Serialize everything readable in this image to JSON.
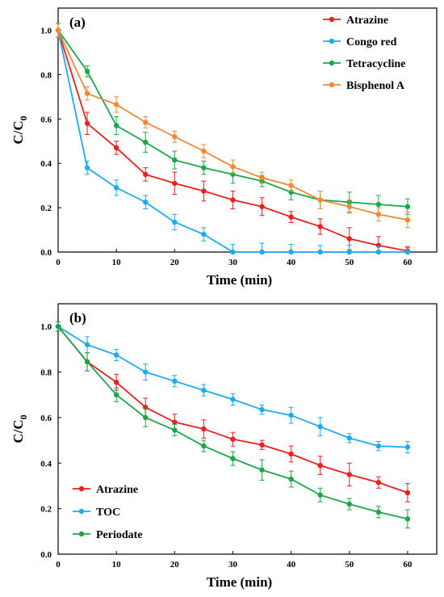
{
  "chart_data": [
    {
      "type": "line",
      "panel_label": "(a)",
      "xlabel": "Time (min)",
      "ylabel": "C/C",
      "ylabel_sub": "0",
      "xlim": [
        0,
        65
      ],
      "ylim": [
        0,
        1.1
      ],
      "xticks": [
        "0",
        "10",
        "20",
        "30",
        "40",
        "50",
        "60"
      ],
      "yticks": [
        "0.0",
        "0.2",
        "0.4",
        "0.6",
        "0.8",
        "1.0"
      ],
      "legend_position": "top-right",
      "grid": false,
      "series": [
        {
          "name": "Atrazine",
          "color": "#e8211e",
          "x": [
            0,
            5,
            10,
            15,
            20,
            25,
            30,
            35,
            40,
            45,
            50,
            55,
            60
          ],
          "y": [
            1.0,
            0.58,
            0.47,
            0.35,
            0.31,
            0.275,
            0.235,
            0.205,
            0.158,
            0.115,
            0.06,
            0.03,
            0.005
          ],
          "err": [
            0.03,
            0.05,
            0.03,
            0.03,
            0.05,
            0.045,
            0.04,
            0.04,
            0.025,
            0.035,
            0.05,
            0.04,
            0.02
          ]
        },
        {
          "name": "Congo red",
          "color": "#1eaaf0",
          "x": [
            0,
            5,
            10,
            15,
            20,
            25,
            30,
            35,
            40,
            45,
            50,
            55,
            60
          ],
          "y": [
            1.0,
            0.38,
            0.29,
            0.225,
            0.135,
            0.08,
            0.0,
            0.0,
            0.0,
            0.0,
            0.0,
            0.0,
            0.0
          ],
          "err": [
            0.03,
            0.03,
            0.035,
            0.03,
            0.035,
            0.03,
            0.035,
            0.04,
            0.035,
            0.03,
            0.03,
            0.025,
            0.02
          ]
        },
        {
          "name": "Tetracycline",
          "color": "#1ba64a",
          "x": [
            0,
            5,
            10,
            15,
            20,
            25,
            30,
            35,
            40,
            45,
            50,
            55,
            60
          ],
          "y": [
            1.0,
            0.815,
            0.57,
            0.495,
            0.415,
            0.38,
            0.35,
            0.32,
            0.27,
            0.235,
            0.225,
            0.215,
            0.205
          ],
          "err": [
            0.03,
            0.025,
            0.04,
            0.045,
            0.04,
            0.03,
            0.04,
            0.025,
            0.035,
            0.04,
            0.045,
            0.04,
            0.035
          ]
        },
        {
          "name": "Bisphenol A",
          "color": "#ef8a36",
          "x": [
            0,
            5,
            10,
            15,
            20,
            25,
            30,
            35,
            40,
            45,
            50,
            55,
            60
          ],
          "y": [
            1.0,
            0.715,
            0.665,
            0.585,
            0.52,
            0.455,
            0.385,
            0.335,
            0.3,
            0.235,
            0.205,
            0.17,
            0.145
          ],
          "err": [
            0.03,
            0.03,
            0.035,
            0.025,
            0.025,
            0.03,
            0.03,
            0.025,
            0.025,
            0.04,
            0.03,
            0.03,
            0.035
          ]
        }
      ]
    },
    {
      "type": "line",
      "panel_label": "(b)",
      "xlabel": "Time (min)",
      "ylabel": "C/C",
      "ylabel_sub": "0",
      "xlim": [
        0,
        65
      ],
      "ylim": [
        0,
        1.1
      ],
      "xticks": [
        "0",
        "10",
        "20",
        "30",
        "40",
        "50",
        "60"
      ],
      "yticks": [
        "0.0",
        "0.2",
        "0.4",
        "0.6",
        "0.8",
        "1.0"
      ],
      "legend_position": "bottom-left",
      "grid": false,
      "series": [
        {
          "name": "Atrazine",
          "color": "#e8211e",
          "x": [
            0,
            5,
            10,
            15,
            20,
            25,
            30,
            35,
            40,
            45,
            50,
            55,
            60
          ],
          "y": [
            1.0,
            0.845,
            0.755,
            0.645,
            0.58,
            0.55,
            0.505,
            0.48,
            0.44,
            0.39,
            0.35,
            0.315,
            0.27
          ],
          "err": [
            0.02,
            0.04,
            0.035,
            0.04,
            0.035,
            0.04,
            0.03,
            0.02,
            0.035,
            0.04,
            0.05,
            0.025,
            0.04
          ]
        },
        {
          "name": "TOC",
          "color": "#1eaaf0",
          "x": [
            0,
            5,
            10,
            15,
            20,
            25,
            30,
            35,
            40,
            45,
            50,
            55,
            60
          ],
          "y": [
            1.0,
            0.92,
            0.875,
            0.8,
            0.76,
            0.72,
            0.68,
            0.635,
            0.61,
            0.56,
            0.51,
            0.475,
            0.47
          ],
          "err": [
            0.02,
            0.035,
            0.025,
            0.035,
            0.025,
            0.025,
            0.025,
            0.02,
            0.035,
            0.04,
            0.02,
            0.02,
            0.025
          ]
        },
        {
          "name": "Periodate",
          "color": "#1ba64a",
          "x": [
            0,
            5,
            10,
            15,
            20,
            25,
            30,
            35,
            40,
            45,
            50,
            55,
            60
          ],
          "y": [
            1.0,
            0.845,
            0.7,
            0.6,
            0.545,
            0.475,
            0.42,
            0.37,
            0.33,
            0.26,
            0.22,
            0.185,
            0.155
          ],
          "err": [
            0.02,
            0.04,
            0.03,
            0.04,
            0.025,
            0.025,
            0.03,
            0.045,
            0.035,
            0.03,
            0.025,
            0.025,
            0.04
          ]
        }
      ]
    }
  ]
}
